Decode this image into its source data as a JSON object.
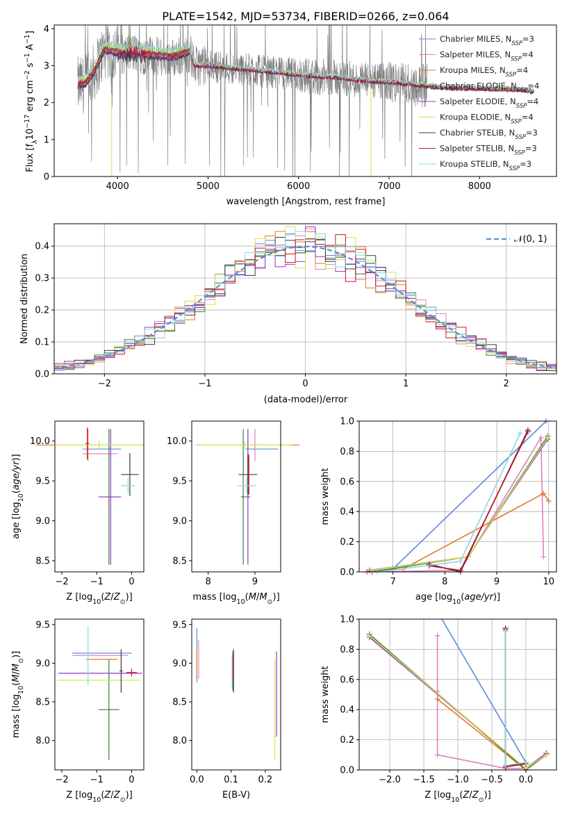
{
  "figure_title": "PLATE=1542, MJD=53734, FIBERID=0266, z=0.064",
  "colors": {
    "chabrier_miles": "#5b8bd9",
    "salpeter_miles": "#e07fbf",
    "kroupa_miles": "#e07a1f",
    "chabrier_elodie": "#2f7f3a",
    "salpeter_elodie": "#9b30c8",
    "kroupa_elodie": "#d8e04a",
    "chabrier_stelib": "#3a3a3a",
    "salpeter_stelib": "#c8102e",
    "kroupa_stelib": "#8fd4e0",
    "data": "#808080",
    "gauss": "#5b8bd9"
  },
  "chart_data": [
    {
      "id": "spectrum",
      "type": "line",
      "title": "PLATE=1542, MJD=53734, FIBERID=0266, z=0.064",
      "xlabel": "wavelength [Angstrom, rest frame]",
      "ylabel": "Flux [fλ10⁻¹⁷ erg cm⁻² s⁻¹ A⁻¹]",
      "xlim": [
        3300,
        8850
      ],
      "ylim": [
        0,
        4.1
      ],
      "xticks": [
        "4000",
        "5000",
        "6000",
        "7000",
        "8000"
      ],
      "yticks": [
        "0",
        "1",
        "2",
        "3",
        "4"
      ],
      "legend_position": "top-right",
      "legend": [
        {
          "text": "Chabrier MILES, N",
          "sub": "SSP",
          "tail": "=3",
          "color_key": "chabrier_miles"
        },
        {
          "text": "Salpeter MILES, N",
          "sub": "SSP",
          "tail": "=4",
          "color_key": "salpeter_miles"
        },
        {
          "text": "Kroupa MILES, N",
          "sub": "SSP",
          "tail": "=4",
          "color_key": "kroupa_miles"
        },
        {
          "text": "Chabrier ELODIE, N",
          "sub": "SSP",
          "tail": "=4",
          "color_key": "chabrier_elodie"
        },
        {
          "text": "Salpeter ELODIE, N",
          "sub": "SSP",
          "tail": "=4",
          "color_key": "salpeter_elodie"
        },
        {
          "text": "Kroupa ELODIE, N",
          "sub": "SSP",
          "tail": "=4",
          "color_key": "kroupa_elodie"
        },
        {
          "text": "Chabrier STELIB, N",
          "sub": "SSP",
          "tail": "=3",
          "color_key": "chabrier_stelib"
        },
        {
          "text": "Salpeter STELIB, N",
          "sub": "SSP",
          "tail": "=3",
          "color_key": "salpeter_stelib"
        },
        {
          "text": "Kroupa STELIB, N",
          "sub": "SSP",
          "tail": "=3",
          "color_key": "kroupa_stelib"
        }
      ],
      "model_continuum": {
        "x": [
          3560,
          3650,
          3750,
          3850,
          3950,
          4050,
          4150,
          4250,
          4400,
          4600,
          4800,
          4850,
          5000,
          5200,
          5400,
          5600,
          5800,
          6000,
          6200,
          6400,
          6600,
          6800,
          7000,
          7200,
          7400,
          7600,
          7800,
          8000,
          8200,
          8400,
          8600
        ],
        "y": [
          2.45,
          2.5,
          2.85,
          3.4,
          3.35,
          3.3,
          3.35,
          3.3,
          3.25,
          3.2,
          3.35,
          3.0,
          3.0,
          2.95,
          2.9,
          2.85,
          2.8,
          2.75,
          2.7,
          2.68,
          2.62,
          2.58,
          2.55,
          2.5,
          2.45,
          2.4,
          2.38,
          2.38,
          2.36,
          2.35,
          2.3
        ]
      },
      "model_offsets": {
        "chabrier_miles": 0.02,
        "salpeter_miles": 0.04,
        "kroupa_miles": 0.0,
        "chabrier_elodie": 0.06,
        "salpeter_elodie": -0.02,
        "kroupa_elodie": 0.12,
        "chabrier_stelib": -0.03,
        "salpeter_stelib": 0.05,
        "kroupa_stelib": 0.15
      },
      "model_range": [
        3560,
        8600
      ],
      "data_range": [
        3560,
        7420
      ]
    },
    {
      "id": "residuals",
      "type": "histogram",
      "xlabel": "(data-model)/error",
      "ylabel": "Normed distribution",
      "xlim": [
        -2.5,
        2.5
      ],
      "ylim": [
        0,
        0.47
      ],
      "xticks": [
        "−2",
        "−1",
        "0",
        "1",
        "2"
      ],
      "yticks": [
        "0.0",
        "0.1",
        "0.2",
        "0.3",
        "0.4"
      ],
      "grid": true,
      "legend_position": "top-right",
      "gauss_label": "𝒩(0, 1)",
      "bin_width": 0.1,
      "series_order": [
        "chabrier_miles",
        "salpeter_miles",
        "kroupa_miles",
        "chabrier_elodie",
        "salpeter_elodie",
        "kroupa_elodie",
        "chabrier_stelib",
        "salpeter_stelib",
        "kroupa_stelib"
      ]
    },
    {
      "id": "age_vs_Z",
      "type": "errorbar",
      "xlabel": "Z [log10(Z/Z☉)]",
      "ylabel": "age [log10(age/yr)]",
      "xlim": [
        -2.2,
        0.35
      ],
      "ylim": [
        8.36,
        10.25
      ],
      "xticks": [
        "−2",
        "−1",
        "0"
      ],
      "yticks": [
        "8.5",
        "9.0",
        "9.5",
        "10.0",
        ""
      ],
      "points": [
        {
          "s": "chabrier_miles",
          "x": -0.85,
          "xe": 0.55,
          "y": 9.9,
          "ye": 0.0
        },
        {
          "s": "salpeter_miles",
          "x": -0.9,
          "xe": 0.5,
          "y": 9.84,
          "ye": 0.0
        },
        {
          "s": "kroupa_miles",
          "x": -1.25,
          "xe": 1.5,
          "y": 9.95,
          "ye": 0.2
        },
        {
          "s": "chabrier_elodie",
          "x": -0.65,
          "xe": 0.3,
          "y": 9.3,
          "ye": 0.85
        },
        {
          "s": "salpeter_elodie",
          "x": -0.6,
          "xe": 0.3,
          "y": 9.3,
          "ye": 0.85
        },
        {
          "s": "kroupa_elodie",
          "x": -0.93,
          "xe": 1.3,
          "y": 9.95,
          "ye": 0.05
        },
        {
          "s": "chabrier_stelib",
          "x": -0.05,
          "xe": 0.25,
          "y": 9.58,
          "ye": 0.27
        },
        {
          "s": "salpeter_stelib",
          "x": -1.27,
          "xe": 0.05,
          "y": 9.97,
          "ye": 0.2
        },
        {
          "s": "kroupa_stelib",
          "x": -0.1,
          "xe": 0.2,
          "y": 9.44,
          "ye": 0.1
        }
      ]
    },
    {
      "id": "age_vs_mass",
      "type": "errorbar",
      "xlabel": "mass [log10(M/M☉)]",
      "ylabel": "",
      "xlim": [
        7.65,
        9.55
      ],
      "ylim": [
        8.36,
        10.25
      ],
      "xticks": [
        "8",
        "9"
      ],
      "yticks": [
        "8.5",
        "9.0",
        "9.5",
        "10.0",
        ""
      ],
      "points": [
        {
          "s": "chabrier_miles",
          "x": 9.15,
          "xe": 0.35,
          "y": 9.9,
          "ye": 0.0
        },
        {
          "s": "salpeter_miles",
          "x": 9.0,
          "xe": 0.2,
          "y": 9.95,
          "ye": 0.2
        },
        {
          "s": "kroupa_miles",
          "x": 8.85,
          "xe": 1.1,
          "y": 9.95,
          "ye": 0.05
        },
        {
          "s": "chabrier_elodie",
          "x": 8.75,
          "xe": 0.05,
          "y": 9.3,
          "ye": 0.85
        },
        {
          "s": "salpeter_elodie",
          "x": 8.85,
          "xe": 0.05,
          "y": 9.3,
          "ye": 0.85
        },
        {
          "s": "kroupa_elodie",
          "x": 8.78,
          "xe": 1.0,
          "y": 9.95,
          "ye": 0.05
        },
        {
          "s": "chabrier_stelib",
          "x": 8.85,
          "xe": 0.2,
          "y": 9.58,
          "ye": 0.25
        },
        {
          "s": "salpeter_stelib",
          "x": 8.87,
          "xe": 0.05,
          "y": 9.58,
          "ye": 0.25
        },
        {
          "s": "kroupa_stelib",
          "x": 8.82,
          "xe": 0.2,
          "y": 9.44,
          "ye": 0.1
        }
      ]
    },
    {
      "id": "mass_weight_vs_age",
      "type": "line",
      "xlabel": "age [log10(age/yr)]",
      "ylabel": "mass weight",
      "xlim": [
        6.35,
        10.15
      ],
      "ylim": [
        0,
        1.0
      ],
      "xticks": [
        "7",
        "8",
        "9",
        "10"
      ],
      "yticks": [
        "0.0",
        "0.2",
        "0.4",
        "0.6",
        "0.8",
        "1.0"
      ],
      "grid": true,
      "series": [
        {
          "s": "chabrier_miles",
          "x": [
            6.5,
            7.0,
            9.95
          ],
          "y": [
            0.0,
            0.02,
            1.0
          ]
        },
        {
          "s": "salpeter_miles",
          "x": [
            6.5,
            8.3,
            9.85,
            9.9
          ],
          "y": [
            0.0,
            0.01,
            0.89,
            0.1
          ]
        },
        {
          "s": "kroupa_miles",
          "x": [
            6.5,
            7.2,
            9.9,
            10.0
          ],
          "y": [
            0.0,
            0.02,
            0.52,
            0.47
          ]
        },
        {
          "s": "chabrier_elodie",
          "x": [
            6.6,
            8.45,
            9.98
          ],
          "y": [
            0.0,
            0.1,
            0.9
          ]
        },
        {
          "s": "salpeter_elodie",
          "x": [
            6.55,
            8.45,
            9.98
          ],
          "y": [
            0.01,
            0.1,
            0.88
          ]
        },
        {
          "s": "kroupa_elodie",
          "x": [
            6.6,
            8.45,
            9.98
          ],
          "y": [
            0.01,
            0.1,
            0.89
          ]
        },
        {
          "s": "chabrier_stelib",
          "x": [
            7.7,
            8.3,
            9.6
          ],
          "y": [
            0.05,
            0.0,
            0.94
          ]
        },
        {
          "s": "salpeter_stelib",
          "x": [
            7.7,
            8.3,
            9.6
          ],
          "y": [
            0.04,
            0.01,
            0.93
          ]
        },
        {
          "s": "kroupa_stelib",
          "x": [
            6.7,
            8.3,
            9.45
          ],
          "y": [
            0.0,
            0.07,
            0.92
          ]
        }
      ]
    },
    {
      "id": "mass_vs_Z",
      "type": "errorbar",
      "xlabel": "Z [log10(Z/Z☉)]",
      "ylabel": "mass [log10(M/M☉)]",
      "xlim": [
        -2.2,
        0.35
      ],
      "ylim": [
        7.62,
        9.57
      ],
      "xticks": [
        "−2",
        "−1",
        "0"
      ],
      "yticks": [
        "8.0",
        "8.5",
        "9.0",
        "9.5"
      ],
      "points": [
        {
          "s": "chabrier_miles",
          "x": -0.85,
          "xe": 0.85,
          "y": 9.13,
          "ye": 0.0
        },
        {
          "s": "salpeter_miles",
          "x": -0.9,
          "xe": 0.8,
          "y": 9.1,
          "ye": 0.0
        },
        {
          "s": "kroupa_miles",
          "x": -0.85,
          "xe": 0.45,
          "y": 9.05,
          "ye": 0.0
        },
        {
          "s": "chabrier_elodie",
          "x": -0.65,
          "xe": 0.3,
          "y": 8.4,
          "ye": 0.65
        },
        {
          "s": "salpeter_elodie",
          "x": -0.9,
          "xe": 1.2,
          "y": 8.87,
          "ye": 0.0
        },
        {
          "s": "kroupa_elodie",
          "x": -0.93,
          "xe": 1.2,
          "y": 8.78,
          "ye": 0.0
        },
        {
          "s": "chabrier_stelib",
          "x": -0.3,
          "xe": 0.05,
          "y": 8.9,
          "ye": 0.28
        },
        {
          "s": "salpeter_stelib",
          "x": 0.0,
          "xe": 0.15,
          "y": 8.88,
          "ye": 0.05
        },
        {
          "s": "kroupa_stelib",
          "x": -1.25,
          "xe": 0.05,
          "y": 9.1,
          "ye": 0.38
        }
      ]
    },
    {
      "id": "mass_vs_ebv",
      "type": "errorbar",
      "xlabel": "E(B-V)",
      "ylabel": "",
      "xlim": [
        -0.015,
        0.245
      ],
      "ylim": [
        7.62,
        9.57
      ],
      "xticks": [
        "0.0",
        "0.1",
        "0.2"
      ],
      "yticks": [
        "8.0",
        "8.5",
        "9.0",
        "9.5"
      ],
      "points": [
        {
          "s": "chabrier_miles",
          "x": 0.0,
          "xe": 0.0,
          "y": 9.1,
          "ye": 0.35
        },
        {
          "s": "salpeter_miles",
          "x": 0.005,
          "xe": 0.0,
          "y": 9.05,
          "ye": 0.25
        },
        {
          "s": "kroupa_miles",
          "x": 0.0,
          "xe": 0.0,
          "y": 9.0,
          "ye": 0.2
        },
        {
          "s": "chabrier_elodie",
          "x": 0.105,
          "xe": 0.0,
          "y": 8.9,
          "ye": 0.25
        },
        {
          "s": "salpeter_elodie",
          "x": 0.233,
          "xe": 0.0,
          "y": 8.6,
          "ye": 0.55
        },
        {
          "s": "kroupa_elodie",
          "x": 0.228,
          "xe": 0.0,
          "y": 8.4,
          "ye": 0.65
        },
        {
          "s": "chabrier_stelib",
          "x": 0.107,
          "xe": 0.0,
          "y": 8.9,
          "ye": 0.28
        },
        {
          "s": "salpeter_stelib",
          "x": 0.107,
          "xe": 0.0,
          "y": 8.95,
          "ye": 0.2
        },
        {
          "s": "kroupa_stelib",
          "x": 0.103,
          "xe": 0.0,
          "y": 8.9,
          "ye": 0.2
        }
      ]
    },
    {
      "id": "mass_weight_vs_Z",
      "type": "line",
      "xlabel": "Z [log10(Z/Z☉)]",
      "ylabel": "mass weight",
      "xlim": [
        -2.45,
        0.45
      ],
      "ylim": [
        0,
        1.0
      ],
      "xticks": [
        "−2.0",
        "−1.5",
        "−1.0",
        "−0.5",
        "0.0"
      ],
      "yticks": [
        "0.0",
        "0.2",
        "0.4",
        "0.6",
        "0.8",
        "1.0"
      ],
      "grid": true,
      "series": [
        {
          "s": "chabrier_miles",
          "x": [
            -1.3,
            0.0
          ],
          "y": [
            1.05,
            0.05
          ]
        },
        {
          "s": "salpeter_miles",
          "x": [
            -1.3,
            -1.3,
            -1.3,
            -0.3,
            0.0,
            0.3
          ],
          "y": [
            0.89,
            0.52,
            0.1,
            0.01,
            0.01,
            0.11
          ]
        },
        {
          "s": "kroupa_miles",
          "x": [
            -1.3,
            0.0,
            0.3
          ],
          "y": [
            0.47,
            0.0,
            0.1
          ]
        },
        {
          "s": "chabrier_elodie",
          "x": [
            -2.3,
            0.0,
            0.3
          ],
          "y": [
            0.9,
            0.0,
            0.1
          ]
        },
        {
          "s": "salpeter_elodie",
          "x": [
            -2.3,
            0.0,
            0.3
          ],
          "y": [
            0.88,
            0.01,
            0.11
          ]
        },
        {
          "s": "kroupa_elodie",
          "x": [
            -2.3,
            0.0,
            0.3
          ],
          "y": [
            0.89,
            0.01,
            0.1
          ]
        },
        {
          "s": "chabrier_stelib",
          "x": [
            -0.3,
            -0.3,
            0.0
          ],
          "y": [
            0.94,
            0.02,
            0.05
          ]
        },
        {
          "s": "salpeter_stelib",
          "x": [
            -0.3,
            -0.3,
            0.0
          ],
          "y": [
            0.93,
            0.02,
            0.04
          ]
        },
        {
          "s": "kroupa_stelib",
          "x": [
            -0.3,
            -0.3,
            0.0
          ],
          "y": [
            0.92,
            0.03,
            0.05
          ]
        }
      ]
    }
  ]
}
